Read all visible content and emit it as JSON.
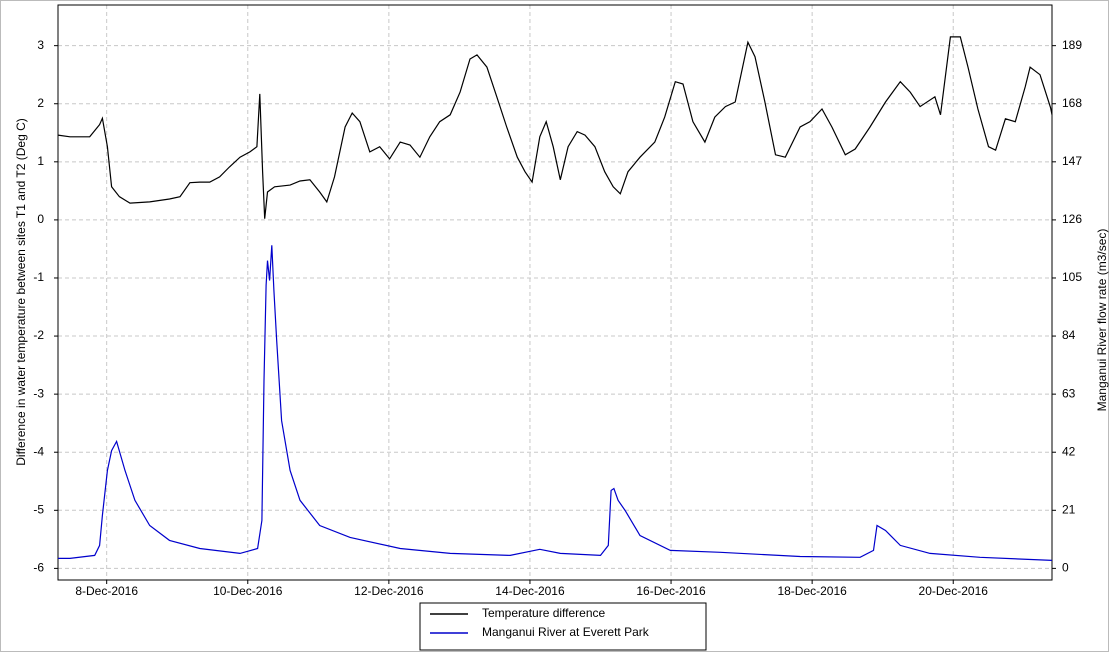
{
  "chart_data": {
    "type": "line",
    "ylabel": "Difference in water temperature between sites T1 and T2 (Deg C)",
    "y2label": "Manganui River flow rate (m3/sec)",
    "xlim": [
      7.31,
      21.4
    ],
    "xticks": [
      {
        "value": 8,
        "label": "8-Dec-2016"
      },
      {
        "value": 10,
        "label": "10-Dec-2016"
      },
      {
        "value": 12,
        "label": "12-Dec-2016"
      },
      {
        "value": 14,
        "label": "14-Dec-2016"
      },
      {
        "value": 16,
        "label": "16-Dec-2016"
      },
      {
        "value": 18,
        "label": "18-Dec-2016"
      },
      {
        "value": 20,
        "label": "20-Dec-2016"
      }
    ],
    "ylim": [
      -6.2,
      3.7
    ],
    "yticks": [
      -6,
      -5,
      -4,
      -3,
      -2,
      -1,
      0,
      1,
      2,
      3
    ],
    "y2lim": [
      -4.2,
      203.7
    ],
    "y2ticks": [
      0,
      21,
      42,
      63,
      84,
      105,
      126,
      147,
      168,
      189
    ],
    "grid": true,
    "legend": "bottom",
    "series": [
      {
        "name": "Temperature difference",
        "color": "#000000",
        "x": [
          7.31,
          7.48,
          7.76,
          7.9,
          7.94,
          8.01,
          8.07,
          8.18,
          8.33,
          8.61,
          8.89,
          9.04,
          9.18,
          9.32,
          9.46,
          9.6,
          9.74,
          9.89,
          10.03,
          10.13,
          10.17,
          10.21,
          10.24,
          10.28,
          10.38,
          10.6,
          10.74,
          10.88,
          11.02,
          11.12,
          11.23,
          11.38,
          11.48,
          11.59,
          11.73,
          11.87,
          12.01,
          12.16,
          12.3,
          12.44,
          12.58,
          12.72,
          12.87,
          13.01,
          13.15,
          13.25,
          13.39,
          13.53,
          13.67,
          13.82,
          13.93,
          14.03,
          14.14,
          14.23,
          14.33,
          14.43,
          14.54,
          14.67,
          14.78,
          14.92,
          15.06,
          15.18,
          15.28,
          15.39,
          15.56,
          15.77,
          15.91,
          16.06,
          16.17,
          16.31,
          16.48,
          16.62,
          16.77,
          16.91,
          17.09,
          17.19,
          17.33,
          17.48,
          17.62,
          17.83,
          17.97,
          18.14,
          18.28,
          18.47,
          18.61,
          18.82,
          19.04,
          19.25,
          19.39,
          19.53,
          19.74,
          19.82,
          19.96,
          20.1,
          20.21,
          20.35,
          20.5,
          20.6,
          20.74,
          20.88,
          21.02,
          21.09,
          21.23,
          21.38,
          21.4
        ],
        "values": [
          1.46,
          1.43,
          1.43,
          1.64,
          1.75,
          1.26,
          0.57,
          0.4,
          0.29,
          0.31,
          0.36,
          0.4,
          0.64,
          0.65,
          0.65,
          0.74,
          0.91,
          1.08,
          1.17,
          1.26,
          2.17,
          0.83,
          0.02,
          0.48,
          0.57,
          0.6,
          0.67,
          0.69,
          0.48,
          0.31,
          0.74,
          1.6,
          1.84,
          1.69,
          1.17,
          1.26,
          1.05,
          1.34,
          1.29,
          1.08,
          1.43,
          1.69,
          1.81,
          2.2,
          2.77,
          2.84,
          2.63,
          2.12,
          1.6,
          1.08,
          0.83,
          0.65,
          1.43,
          1.69,
          1.26,
          0.69,
          1.26,
          1.52,
          1.46,
          1.26,
          0.83,
          0.57,
          0.45,
          0.83,
          1.08,
          1.34,
          1.77,
          2.38,
          2.34,
          1.69,
          1.34,
          1.77,
          1.95,
          2.03,
          3.06,
          2.81,
          2.03,
          1.12,
          1.08,
          1.6,
          1.69,
          1.91,
          1.6,
          1.12,
          1.22,
          1.6,
          2.03,
          2.38,
          2.2,
          1.95,
          2.12,
          1.81,
          3.15,
          3.15,
          2.63,
          1.91,
          1.26,
          1.2,
          1.74,
          1.69,
          2.29,
          2.63,
          2.5,
          1.93,
          1.81
        ]
      },
      {
        "name": "Manganui River at Everett Park",
        "color": "#0000cc",
        "axis": "y2",
        "x": [
          7.31,
          7.48,
          7.83,
          7.9,
          7.94,
          8.01,
          8.07,
          8.14,
          8.26,
          8.4,
          8.61,
          8.89,
          9.32,
          9.89,
          10.14,
          10.2,
          10.23,
          10.26,
          10.28,
          10.31,
          10.34,
          10.37,
          10.41,
          10.48,
          10.6,
          10.74,
          11.02,
          11.45,
          12.16,
          12.87,
          13.72,
          14.14,
          14.43,
          15.0,
          15.11,
          15.15,
          15.19,
          15.25,
          15.35,
          15.56,
          15.99,
          16.7,
          17.83,
          18.68,
          18.87,
          18.92,
          19.04,
          19.25,
          19.67,
          20.38,
          21.4
        ],
        "values": [
          3.6,
          3.6,
          4.7,
          8.3,
          19.2,
          35.4,
          42.6,
          45.9,
          35.4,
          24.6,
          15.5,
          10.1,
          7.2,
          5.4,
          7.2,
          17.3,
          68.0,
          102.3,
          111.3,
          104.1,
          116.8,
          100.5,
          82.3,
          53.4,
          35.4,
          24.6,
          15.5,
          11.2,
          7.2,
          5.4,
          4.7,
          6.9,
          5.4,
          4.7,
          8.3,
          28.2,
          28.9,
          24.6,
          20.9,
          11.9,
          6.5,
          5.8,
          4.3,
          4.0,
          6.5,
          15.5,
          13.7,
          8.3,
          5.4,
          4.0,
          2.9
        ]
      }
    ]
  }
}
